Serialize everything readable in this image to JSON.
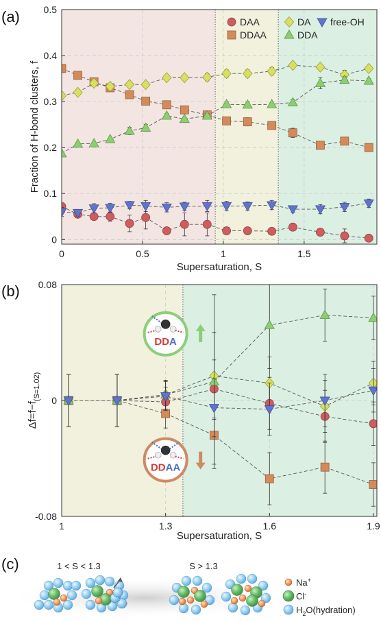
{
  "panel_labels": {
    "a": "(a)",
    "b": "(b)",
    "c": "(c)"
  },
  "colors": {
    "DAA": "#cf5c5f",
    "DDAA": "#d48a5a",
    "DA": "#d9e05f",
    "DDA": "#8ccf6f",
    "free-OH": "#5f74d0",
    "region_pink": "#f3e6e2",
    "region_yellow": "#f1f1de",
    "region_green": "#dcefe3",
    "circle_green": "#8cce7a",
    "circle_orange": "#cf8a63",
    "Na": "#f19a5b",
    "Cl": "#6cc16f",
    "H2O": "#8fcbf1"
  },
  "chart_data": [
    {
      "type": "scatter",
      "panel": "(a)",
      "xlabel": "Supersaturation, S",
      "ylabel": "Fraction of H-bond clusters, f",
      "xlim": [
        0,
        1.95
      ],
      "ylim": [
        -0.01,
        0.5
      ],
      "xticks": [
        0,
        0.5,
        1,
        1.5
      ],
      "xticklabels": [
        "0",
        "0.5",
        "1",
        "1.5"
      ],
      "yticks": [
        0,
        0.1,
        0.2,
        0.3,
        0.4,
        0.5
      ],
      "yticklabels": [
        "0",
        "0.1",
        "0.2",
        "0.3",
        "0.4",
        "0.5"
      ],
      "regions": [
        {
          "from": 0,
          "to": 0.95,
          "color": "region_pink"
        },
        {
          "from": 0.95,
          "to": 1.34,
          "color": "region_yellow"
        },
        {
          "from": 1.34,
          "to": 1.95,
          "color": "region_green"
        }
      ],
      "legend": "top-right",
      "x": [
        0,
        0.1,
        0.2,
        0.3,
        0.42,
        0.52,
        0.65,
        0.76,
        0.9,
        1.02,
        1.15,
        1.3,
        1.43,
        1.6,
        1.75,
        1.9
      ],
      "series": [
        {
          "name": "DAA",
          "marker": "circle",
          "values": [
            0.072,
            0.055,
            0.05,
            0.05,
            0.035,
            0.048,
            0.019,
            0.033,
            0.033,
            0.019,
            0.019,
            0.018,
            0.027,
            0.016,
            0.008,
            0.003
          ],
          "err": [
            0.006,
            0.006,
            0.008,
            0.01,
            0.018,
            0.025,
            0.005,
            0.025,
            0.025,
            0.004,
            0.004,
            0.003,
            0.008,
            0.003,
            0.015,
            0.003
          ]
        },
        {
          "name": "DDAA",
          "marker": "square",
          "values": [
            0.372,
            0.357,
            0.343,
            0.33,
            0.315,
            0.301,
            0.293,
            0.282,
            0.271,
            0.258,
            0.256,
            0.248,
            0.232,
            0.205,
            0.214,
            0.2
          ],
          "err": [
            0.005,
            0.005,
            0.005,
            0.004,
            0.006,
            0.004,
            0.006,
            0.005,
            0.006,
            0.004,
            0.009,
            0.004,
            0.01,
            0.005,
            0.005,
            0.005
          ]
        },
        {
          "name": "DA",
          "marker": "diamond",
          "values": [
            0.313,
            0.32,
            0.34,
            0.333,
            0.337,
            0.337,
            0.352,
            0.352,
            0.353,
            0.361,
            0.361,
            0.366,
            0.379,
            0.375,
            0.358,
            0.372
          ],
          "err": [
            0.005,
            0.006,
            0.005,
            0.004,
            0.005,
            0.006,
            0.006,
            0.004,
            0.008,
            0.008,
            0.008,
            0.008,
            0.005,
            0.005,
            0.01,
            0.005
          ]
        },
        {
          "name": "DDA",
          "marker": "triangle-up",
          "values": [
            0.187,
            0.208,
            0.209,
            0.218,
            0.236,
            0.243,
            0.269,
            0.262,
            0.269,
            0.294,
            0.293,
            0.294,
            0.298,
            0.34,
            0.347,
            0.345
          ],
          "err": [
            0.003,
            0.003,
            0.003,
            0.003,
            0.008,
            0.007,
            0.005,
            0.004,
            0.005,
            0.005,
            0.006,
            0.004,
            0.006,
            0.012,
            0.007,
            0.005
          ]
        },
        {
          "name": "free-OH",
          "marker": "triangle-down",
          "values": [
            0.06,
            0.058,
            0.068,
            0.069,
            0.075,
            0.073,
            0.07,
            0.072,
            0.073,
            0.073,
            0.073,
            0.075,
            0.066,
            0.066,
            0.071,
            0.079
          ],
          "err": [
            0.01,
            0.007,
            0.01,
            0.01,
            0.008,
            0.012,
            0.01,
            0.009,
            0.012,
            0.01,
            0.009,
            0.01,
            0.007,
            0.01,
            0.01,
            0.009
          ]
        }
      ]
    },
    {
      "type": "line",
      "panel": "(b)",
      "xlabel": "Supersaturation, S",
      "ylabel_main": "Δf=f−f",
      "ylabel_sub": "(S=1.02)",
      "xlim": [
        1.0,
        1.91
      ],
      "ylim": [
        -0.08,
        0.08
      ],
      "xticks": [
        1,
        1.3,
        1.6,
        1.9
      ],
      "xticklabels": [
        "1",
        "1.3",
        "1.6",
        "1.9"
      ],
      "yticks": [
        -0.08,
        0,
        0.08
      ],
      "yticklabels": [
        "-0.08",
        "0",
        "0.08"
      ],
      "regions": [
        {
          "from": 1.0,
          "to": 1.35,
          "color": "region_yellow"
        },
        {
          "from": 1.35,
          "to": 1.91,
          "color": "region_green"
        }
      ],
      "x": [
        1.02,
        1.16,
        1.3,
        1.44,
        1.6,
        1.76,
        1.9
      ],
      "series": [
        {
          "name": "DAA",
          "marker": "circle",
          "values": [
            0,
            0,
            -0.001,
            0.008,
            -0.002,
            -0.011,
            -0.016
          ],
          "err": [
            0.018,
            0.018,
            0.01,
            0.02,
            0.018,
            0.018,
            0.015
          ]
        },
        {
          "name": "DDAA",
          "marker": "square",
          "values": [
            0,
            0,
            -0.009,
            -0.024,
            -0.054,
            -0.046,
            -0.058
          ],
          "err": [
            0.018,
            0.018,
            0.01,
            0.02,
            0.018,
            0.018,
            0.015
          ]
        },
        {
          "name": "DA",
          "marker": "diamond",
          "values": [
            0,
            0,
            0.004,
            0.017,
            0.012,
            -0.004,
            0.012
          ],
          "err": [
            0.018,
            0.018,
            0.01,
            0.03,
            0.018,
            0.018,
            0.015
          ]
        },
        {
          "name": "DDA",
          "marker": "triangle-up",
          "values": [
            0,
            0,
            0.004,
            0.013,
            0.052,
            0.059,
            0.057
          ],
          "err": [
            0.018,
            0.018,
            0.01,
            0.06,
            0.03,
            0.018,
            0.015
          ]
        },
        {
          "name": "free-OH",
          "marker": "triangle-down",
          "values": [
            0,
            0,
            0.003,
            -0.005,
            -0.006,
            0.0,
            0.007
          ],
          "err": [
            0.018,
            0.018,
            0.01,
            0.02,
            0.018,
            0.018,
            0.015
          ]
        }
      ],
      "insets": [
        {
          "label_prefix": "DD",
          "label_suffix": "A",
          "arrow": "up",
          "circle_color": "circle_green",
          "x": 1.3,
          "y": 0.046
        },
        {
          "label_prefix": "DD",
          "label_suffix": "AA",
          "arrow": "down",
          "circle_color": "circle_orange",
          "x": 1.3,
          "y": -0.041
        }
      ]
    }
  ],
  "panel_c": {
    "left_label": "1 < S < 1.3",
    "right_label": "S > 1.3",
    "legend": [
      {
        "key": "Na",
        "text": "Na",
        "sup": "+"
      },
      {
        "key": "Cl",
        "text": "Cl",
        "sup": "-"
      },
      {
        "key": "H2O",
        "text": "H",
        "sub": "2",
        "rest": "O(hydration)"
      }
    ]
  }
}
